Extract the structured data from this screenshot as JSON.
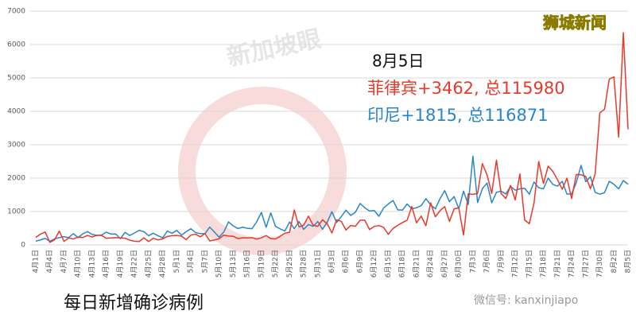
{
  "chart_data": {
    "type": "line",
    "date_label": "8月5日",
    "annotations": [
      "菲律宾+3462, 总115980",
      "印尼+1815, 总116871"
    ],
    "caption": "每日新增确诊病例",
    "brand": "狮城新闻",
    "watermark": "新加坡眼",
    "source": "微信号: kanxinjiapo",
    "categories": [
      "4月1日",
      null,
      null,
      "4月4日",
      null,
      null,
      "4月7日",
      null,
      null,
      "4月10日",
      null,
      null,
      "4月13日",
      null,
      null,
      "4月16日",
      null,
      null,
      "4月19日",
      null,
      null,
      "4月22日",
      null,
      null,
      "4月25日",
      null,
      null,
      "4月28日",
      null,
      null,
      "5月1日",
      null,
      null,
      "5月4日",
      null,
      null,
      "5月7日",
      null,
      null,
      "5月10日",
      null,
      null,
      "5月13日",
      null,
      null,
      "5月16日",
      null,
      null,
      "5月19日",
      null,
      null,
      "5月22日",
      null,
      null,
      "5月25日",
      null,
      null,
      "5月28日",
      null,
      null,
      "5月31日",
      null,
      null,
      "6月3日",
      null,
      null,
      "6月6日",
      null,
      null,
      "6月9日",
      null,
      null,
      "6月12日",
      null,
      null,
      "6月15日",
      null,
      null,
      "6月18日",
      null,
      null,
      "6月21日",
      null,
      null,
      "6月24日",
      null,
      null,
      "6月27日",
      null,
      null,
      "6月30日",
      null,
      null,
      "7月3日",
      null,
      null,
      "7月6日",
      null,
      null,
      "7月9日",
      null,
      null,
      "7月12日",
      null,
      null,
      "7月15日",
      null,
      null,
      "7月18日",
      null,
      null,
      "7月21日",
      null,
      null,
      "7月24日",
      null,
      null,
      "7月27日",
      null,
      null,
      "7月30日",
      null,
      null,
      "8月2日",
      null,
      null,
      "8月5日"
    ],
    "series": [
      {
        "color": "#e8392b",
        "values": [
          227,
          322,
          385,
          76,
          152,
          414,
          106,
          206,
          180,
          233,
          220,
          284,
          233,
          291,
          284,
          200,
          207,
          218,
          209,
          200,
          140,
          111,
          102,
          211,
          102,
          198,
          150,
          181,
          254,
          276,
          284,
          262,
          156,
          295,
          320,
          242,
          339,
          120,
          147,
          184,
          292,
          264,
          258,
          188,
          215,
          208,
          216,
          175,
          213,
          279,
          189,
          179,
          258,
          350,
          380,
          1046,
          540,
          590,
          862,
          590,
          557,
          750,
          634,
          357,
          751,
          703,
          444,
          581,
          557,
          740,
          740,
          459,
          555,
          579,
          526,
          317,
          490,
          587,
          668,
          739,
          1150,
          660,
          863,
          574,
          1258,
          842,
          1024,
          1147,
          702,
          1080,
          1110,
          294,
          1531,
          1514,
          1541,
          2434,
          2099,
          1540,
          2539,
          1540,
          1387,
          1780,
          1345,
          2124,
          747,
          634,
          1257,
          2498,
          1838,
          2357,
          2200,
          1951,
          1665,
          2000,
          1390,
          2110,
          2100,
          2050,
          1680,
          2123,
          3954,
          4063,
          4963,
          5032,
          3226,
          6352,
          3462
        ]
      },
      {
        "color": "#2a86c8",
        "values": [
          114,
          149,
          196,
          106,
          181,
          218,
          247,
          218,
          337,
          219,
          330,
          399,
          316,
          282,
          297,
          380,
          325,
          327,
          185,
          375,
          283,
          357,
          436,
          396,
          275,
          349,
          275,
          214,
          415,
          347,
          433,
          292,
          395,
          484,
          367,
          338,
          336,
          533,
          387,
          233,
          386,
          689,
          568,
          490,
          529,
          496,
          486,
          693,
          973,
          526,
          958,
          555,
          479,
          415,
          687,
          485,
          700,
          466,
          609,
          557,
          700,
          467,
          684,
          993,
          672,
          847,
          1043,
          880,
          979,
          1241,
          1111,
          1014,
          1031,
          857,
          1106,
          1226,
          1331,
          1051,
          1041,
          1226,
          1082,
          1113,
          1178,
          1385,
          1198,
          1082,
          1385,
          1624,
          1293,
          1447,
          1082,
          1611,
          1209,
          2657,
          1268,
          1681,
          1853,
          1262,
          1574,
          1609,
          1525,
          1752,
          1639,
          1681,
          1693,
          1519,
          1882,
          1712,
          1678,
          2000,
          1812,
          1761,
          1904,
          1522,
          1525,
          1868,
          2381,
          1893,
          2040,
          1573,
          1519,
          1565,
          1904,
          1814,
          1679,
          1926,
          1815
        ]
      }
    ],
    "ylim": [
      0,
      7000
    ],
    "yticks": [
      0,
      1000,
      2000,
      3000,
      4000,
      5000,
      6000,
      7000
    ],
    "grid": true
  }
}
